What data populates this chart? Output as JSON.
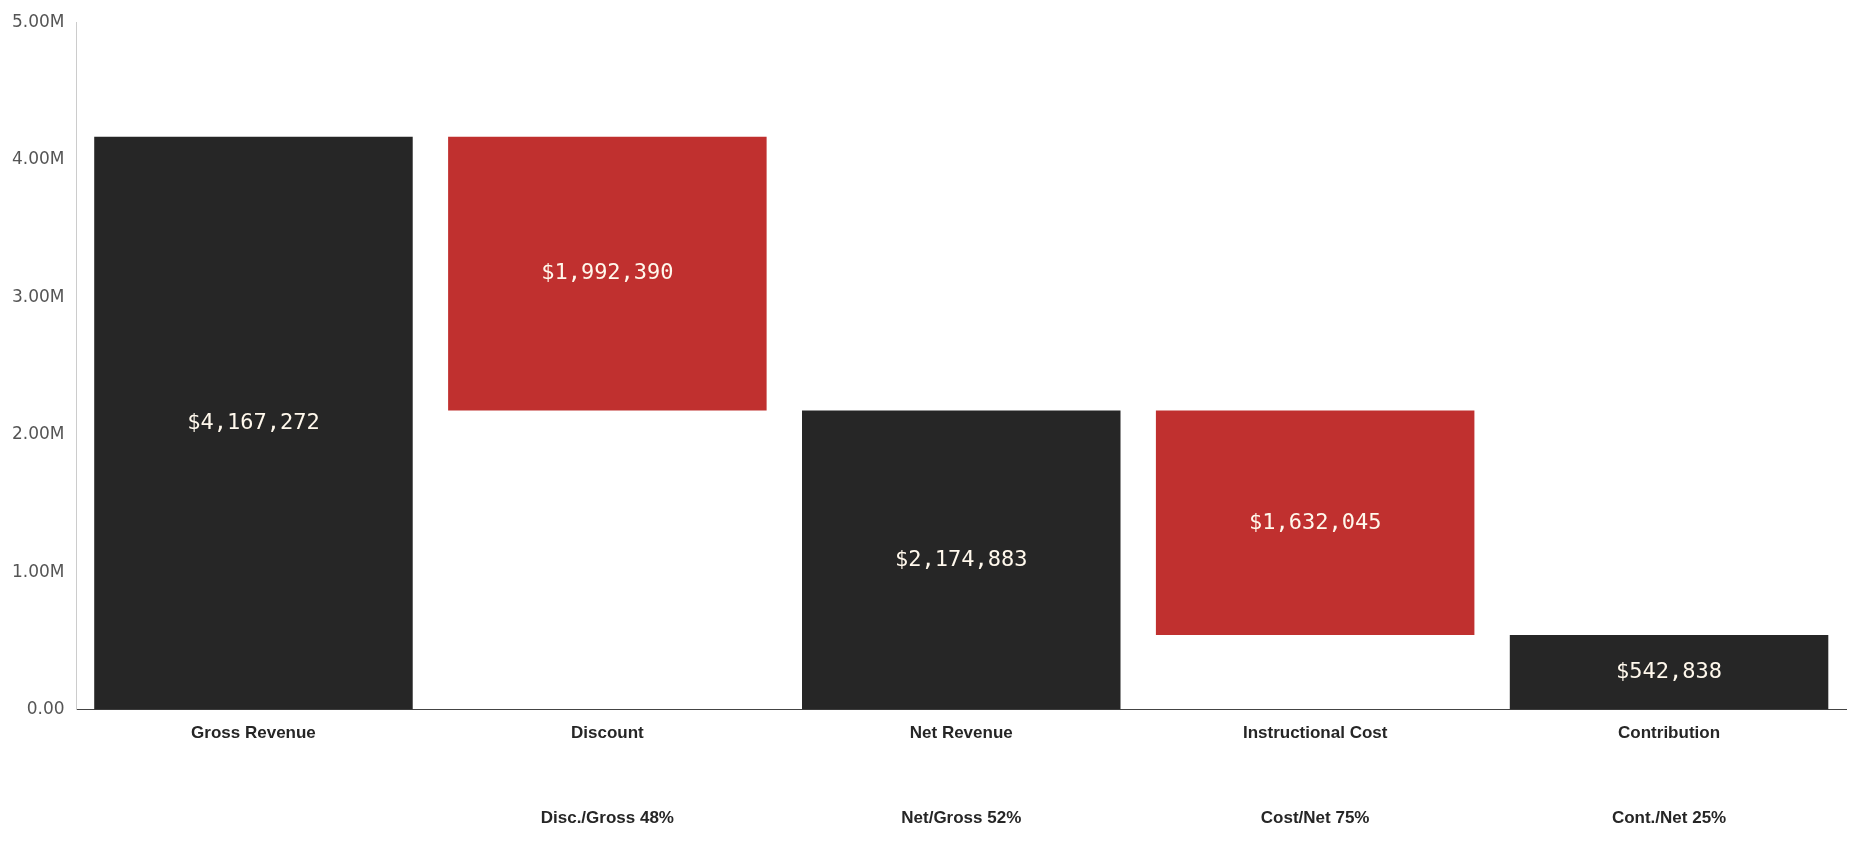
{
  "chart_data": {
    "type": "bar",
    "categories": [
      "Gross Revenue",
      "Discount",
      "Net Revenue",
      "Instructional Cost",
      "Contribution"
    ],
    "values": [
      4167272,
      1992390,
      2174883,
      1632045,
      542838
    ],
    "base": [
      0,
      2174882,
      0,
      542838,
      0
    ],
    "colors": [
      "#262626",
      "#c0302f",
      "#262626",
      "#c0302f",
      "#262626"
    ],
    "value_labels": [
      "$4,167,272",
      "$1,992,390",
      "$2,174,883",
      "$1,632,045",
      "$542,838"
    ],
    "ylim": [
      0,
      5000000
    ],
    "yticks": [
      {
        "value": 0,
        "label": "0.00"
      },
      {
        "value": 1000000,
        "label": "1.00M"
      },
      {
        "value": 2000000,
        "label": "2.00M"
      },
      {
        "value": 3000000,
        "label": "3.00M"
      },
      {
        "value": 4000000,
        "label": "4.00M"
      },
      {
        "value": 5000000,
        "label": "5.00M"
      }
    ],
    "grid": false,
    "legend": false,
    "annotations": [
      "Disc./Gross 48%",
      "Net/Gross 52%",
      "Cost/Net 75%",
      "Cont./Net 25%"
    ]
  }
}
